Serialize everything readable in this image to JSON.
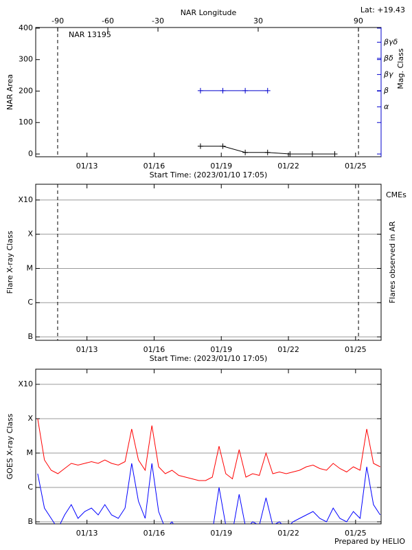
{
  "chart_data": [
    {
      "type": "line",
      "title": "NAR 13195",
      "annotation": "Lat: +19.43",
      "x2label": "NAR Longitude",
      "x2lim": [
        -103.2,
        103.6
      ],
      "x2ticks": [
        -90,
        -60,
        -30,
        30,
        90
      ],
      "xlabel": "Start Time: (2023/01/10 17:05)",
      "ylabel": "NAR Area",
      "y2label": "Mag. Class",
      "y2color": "#0000cc",
      "xlim": [
        10.71,
        26.14
      ],
      "xticks": [
        {
          "value": 13,
          "label": "01/13"
        },
        {
          "value": 16,
          "label": "01/16"
        },
        {
          "value": 19,
          "label": "01/19"
        },
        {
          "value": 22,
          "label": "01/22"
        },
        {
          "value": 25,
          "label": "01/25"
        }
      ],
      "ylim": [
        -8.7,
        402
      ],
      "yticks": [
        0,
        100,
        200,
        300,
        400
      ],
      "y2lim": [
        -0.09,
        7.91
      ],
      "y2ticks": [
        {
          "value": 3,
          "label": "α"
        },
        {
          "value": 4,
          "label": "β"
        },
        {
          "value": 5,
          "label": "βγ"
        },
        {
          "value": 6,
          "label": "βδ"
        },
        {
          "value": 7,
          "label": "βγδ"
        }
      ],
      "vlines": [
        11.69,
        25.13
      ],
      "grid": false,
      "series": [
        {
          "color": "#000000",
          "marker": "plus",
          "x": [
            18.07,
            19.07,
            20.07,
            21.07,
            22.07,
            23.07,
            24.07
          ],
          "values": [
            25,
            25,
            5,
            5,
            0,
            0,
            0
          ]
        },
        {
          "color": "#0000cc",
          "marker": "plus",
          "axis": "y2",
          "x": [
            18.07,
            19.07,
            20.07,
            21.07
          ],
          "values": [
            4,
            4,
            4,
            4
          ]
        }
      ]
    },
    {
      "type": "line",
      "ylabel": "Flare X-ray Class",
      "y2label": "Flares observed in AR",
      "annotation": "CMEs",
      "annotation_color": "#e00000",
      "xlabel": "Start Time: (2023/01/10 17:05)",
      "xlim": [
        10.71,
        26.14
      ],
      "xticks": [
        {
          "value": 13,
          "label": "01/13"
        },
        {
          "value": 16,
          "label": "01/16"
        },
        {
          "value": 19,
          "label": "01/19"
        },
        {
          "value": 22,
          "label": "01/22"
        },
        {
          "value": 25,
          "label": "01/25"
        }
      ],
      "ylim": [
        -7.1,
        -2.54
      ],
      "yticks": [
        {
          "value": -7,
          "label": "B"
        },
        {
          "value": -6,
          "label": "C"
        },
        {
          "value": -5,
          "label": "M"
        },
        {
          "value": -4,
          "label": "X"
        },
        {
          "value": -3,
          "label": "X10"
        }
      ],
      "vlines": [
        11.69,
        25.13
      ],
      "grid": true,
      "series": []
    },
    {
      "type": "line",
      "ylabel": "GOES X-ray Class",
      "note": "Prepared by HELIO",
      "xlim": [
        10.71,
        26.14
      ],
      "xticks": [
        {
          "value": 13,
          "label": "01/13"
        },
        {
          "value": 16,
          "label": "01/16"
        },
        {
          "value": 19,
          "label": "01/19"
        },
        {
          "value": 22,
          "label": "01/22"
        },
        {
          "value": 25,
          "label": "01/25"
        }
      ],
      "ylim": [
        -7.06,
        -2.56
      ],
      "yticks": [
        {
          "value": -7,
          "label": "B"
        },
        {
          "value": -6,
          "label": "C"
        },
        {
          "value": -5,
          "label": "M"
        },
        {
          "value": -4,
          "label": "X"
        },
        {
          "value": -3,
          "label": "X10"
        }
      ],
      "grid": true,
      "x": [
        10.8,
        11.1,
        11.4,
        11.7,
        12.0,
        12.3,
        12.6,
        12.9,
        13.2,
        13.5,
        13.8,
        14.1,
        14.4,
        14.7,
        15.0,
        15.3,
        15.6,
        15.9,
        16.2,
        16.5,
        16.8,
        17.1,
        17.4,
        17.7,
        18.0,
        18.3,
        18.6,
        18.9,
        19.2,
        19.5,
        19.8,
        20.1,
        20.4,
        20.7,
        21.0,
        21.3,
        21.6,
        21.9,
        22.2,
        22.5,
        22.8,
        23.1,
        23.4,
        23.7,
        24.0,
        24.3,
        24.6,
        24.9,
        25.2,
        25.5,
        25.8,
        26.1
      ],
      "series": [
        {
          "color": "#ff0000",
          "values": [
            -4.0,
            -5.2,
            -5.5,
            -5.6,
            -5.45,
            -5.3,
            -5.35,
            -5.3,
            -5.25,
            -5.3,
            -5.2,
            -5.3,
            -5.35,
            -5.25,
            -4.3,
            -5.2,
            -5.5,
            -4.2,
            -5.4,
            -5.6,
            -5.5,
            -5.65,
            -5.7,
            -5.75,
            -5.8,
            -5.8,
            -5.7,
            -4.8,
            -5.6,
            -5.75,
            -4.9,
            -5.7,
            -5.6,
            -5.65,
            -5.0,
            -5.6,
            -5.55,
            -5.6,
            -5.55,
            -5.5,
            -5.4,
            -5.35,
            -5.45,
            -5.5,
            -5.3,
            -5.45,
            -5.55,
            -5.4,
            -5.5,
            -4.3,
            -5.3,
            -5.4
          ]
        },
        {
          "color": "#0000ff",
          "values": [
            -5.6,
            -6.6,
            -6.9,
            -7.2,
            -6.8,
            -6.5,
            -6.9,
            -6.7,
            -6.6,
            -6.8,
            -6.5,
            -6.8,
            -6.9,
            -6.6,
            -5.3,
            -6.4,
            -6.9,
            -5.3,
            -6.7,
            -7.2,
            -7.0,
            -7.3,
            -7.3,
            -7.4,
            -7.4,
            -7.4,
            -7.3,
            -6.0,
            -7.1,
            -7.3,
            -6.2,
            -7.2,
            -7.0,
            -7.1,
            -6.3,
            -7.1,
            -7.0,
            -7.2,
            -7.0,
            -6.9,
            -6.8,
            -6.7,
            -6.9,
            -7.0,
            -6.6,
            -6.9,
            -7.0,
            -6.7,
            -6.9,
            -5.4,
            -6.5,
            -6.8
          ]
        }
      ]
    }
  ]
}
